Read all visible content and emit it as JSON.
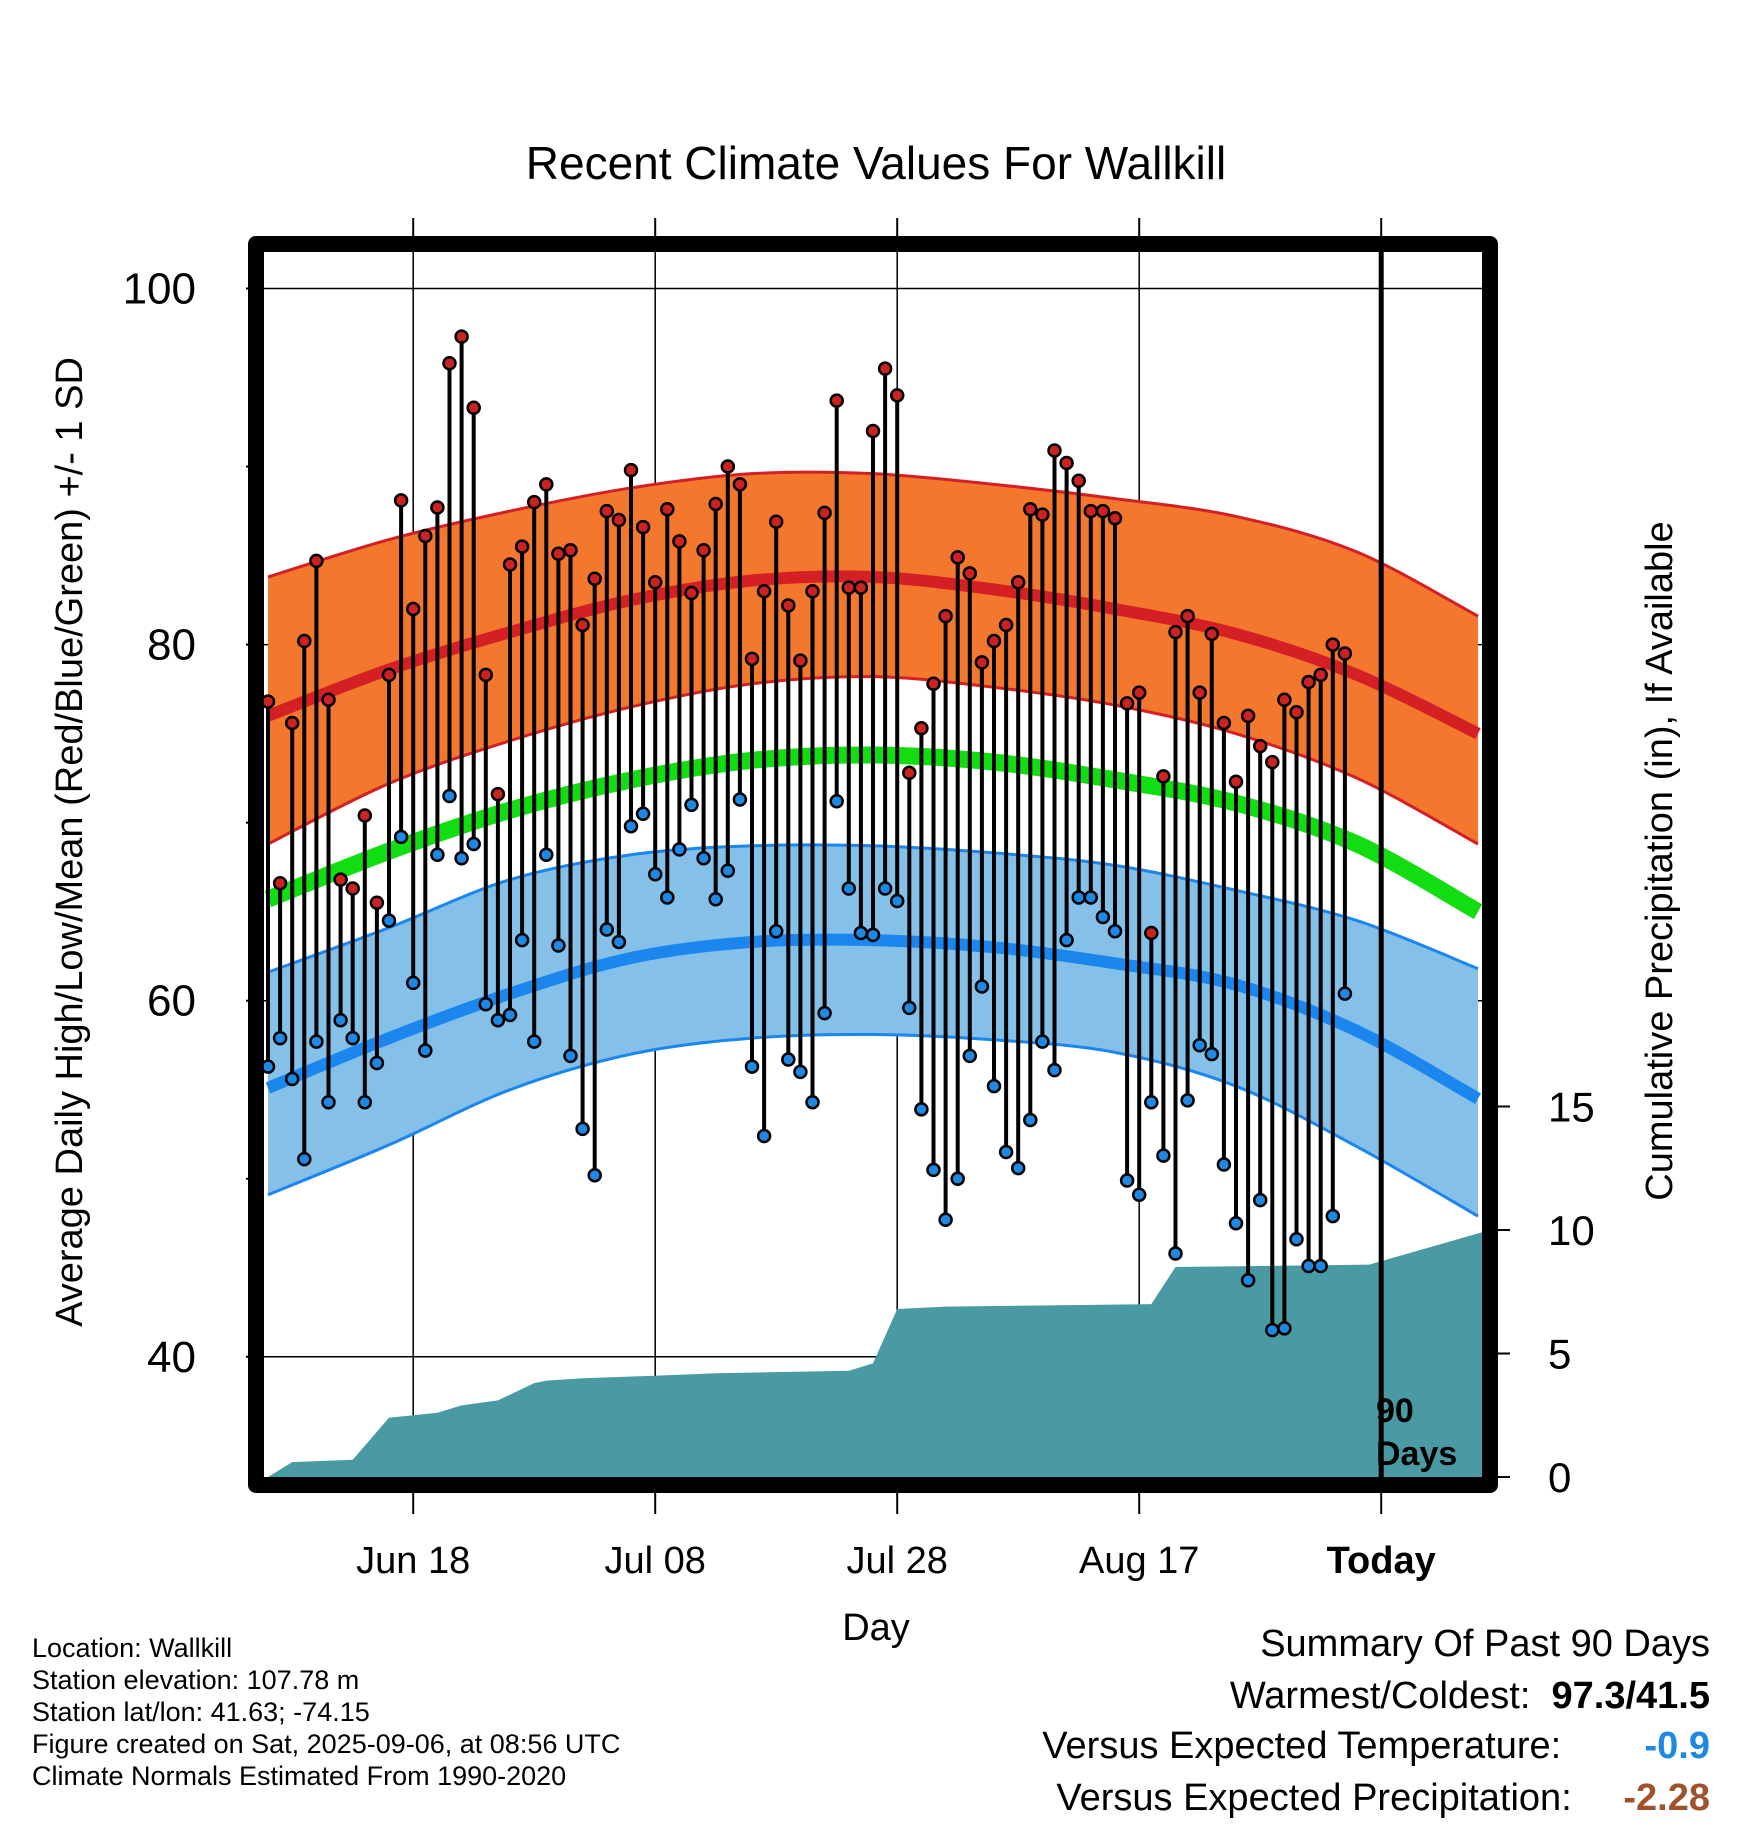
{
  "chart_data": {
    "type": "line",
    "title": "Recent Climate Values For Wallkill",
    "xlabel": "Day",
    "ylabel": "Average Daily High/Low/Mean (Red/Blue/Green) +/- 1 SD",
    "y2label": "Cumulative Precipitation (in), If Available",
    "ylim": [
      32.8,
      102.5
    ],
    "y2lim": [
      0,
      50
    ],
    "y_ticks": [
      40,
      60,
      80,
      100
    ],
    "y2_ticks": [
      0,
      5,
      10,
      15
    ],
    "x_tick_labels": [
      "Jun 18",
      "Jul 08",
      "Jul 28",
      "Aug 17",
      "Today"
    ],
    "today_marker_label": [
      "90",
      "Days"
    ],
    "grid": true,
    "colors": {
      "high_band": "#f4772e",
      "high_line": "#d42024",
      "low_band": "#85c0e8",
      "low_line": "#1a86ee",
      "mean_line": "#11dd11",
      "precip": "#4a9aa3",
      "high_point": "#cc2222",
      "low_point": "#1e88e5"
    },
    "normals": {
      "note": "normal curves sampled every 10 days from the first day (Jun 07)",
      "day": [
        1,
        11,
        21,
        31,
        41,
        51,
        61,
        71,
        81,
        91,
        101
      ],
      "high_mean": [
        76.0,
        78.6,
        80.7,
        82.5,
        83.6,
        83.8,
        83.1,
        82.0,
        80.6,
        78.3,
        75.0
      ],
      "high_upper": [
        83.8,
        85.9,
        87.5,
        88.8,
        89.6,
        89.6,
        89.0,
        88.2,
        87.2,
        85.2,
        81.6
      ],
      "high_lower": [
        68.8,
        72.2,
        74.6,
        76.5,
        77.8,
        78.2,
        77.6,
        76.6,
        75.0,
        72.5,
        68.8
      ],
      "mean_line": [
        65.7,
        68.4,
        70.7,
        72.4,
        73.5,
        73.8,
        73.4,
        72.4,
        71.1,
        68.8,
        65.0
      ],
      "low_mean": [
        55.1,
        57.9,
        60.4,
        62.4,
        63.3,
        63.4,
        63.0,
        62.1,
        60.9,
        58.3,
        54.5
      ],
      "low_upper": [
        61.6,
        64.1,
        66.8,
        68.2,
        68.7,
        68.7,
        68.3,
        67.6,
        66.2,
        64.5,
        61.8
      ],
      "low_lower": [
        49.1,
        51.9,
        55.0,
        57.0,
        57.9,
        58.1,
        57.8,
        57.1,
        55.2,
        51.8,
        47.9
      ]
    },
    "series": [
      {
        "name": "High",
        "values": [
          76.8,
          66.6,
          75.6,
          80.2,
          84.7,
          76.9,
          66.8,
          66.3,
          70.4,
          65.5,
          78.3,
          88.1,
          82.0,
          86.1,
          87.7,
          95.8,
          97.3,
          93.3,
          78.3,
          71.6,
          84.5,
          85.5,
          88.0,
          89.0,
          85.1,
          85.3,
          81.1,
          83.7,
          87.5,
          87.0,
          89.8,
          86.6,
          83.5,
          87.6,
          85.8,
          82.9,
          85.3,
          87.9,
          90.0,
          89.0,
          79.2,
          83.0,
          86.9,
          82.2,
          79.1,
          83.0,
          87.4,
          93.7,
          83.2,
          83.2,
          92.0,
          95.5,
          94.0,
          72.8,
          75.3,
          77.8,
          81.6,
          84.9,
          84.0,
          79.0,
          80.2,
          81.1,
          83.5,
          87.6,
          87.3,
          90.9,
          90.2,
          89.2,
          87.5,
          87.5,
          87.1,
          76.7,
          77.3,
          63.8,
          72.6,
          80.7,
          81.6,
          77.3,
          80.6,
          75.6,
          72.3,
          76.0,
          74.3,
          73.4,
          76.9,
          76.2,
          77.9,
          78.3,
          80.0,
          79.5
        ]
      },
      {
        "name": "Low",
        "values": [
          56.3,
          57.9,
          55.6,
          51.1,
          57.7,
          54.3,
          58.9,
          57.9,
          54.3,
          56.5,
          64.5,
          69.2,
          61.0,
          57.2,
          68.2,
          71.5,
          68.0,
          68.8,
          59.8,
          58.9,
          59.2,
          63.4,
          57.7,
          68.2,
          63.1,
          56.9,
          52.8,
          50.2,
          64.0,
          63.3,
          69.8,
          70.5,
          67.1,
          65.8,
          68.5,
          71.0,
          68.0,
          65.7,
          67.3,
          71.3,
          56.3,
          52.4,
          63.9,
          56.7,
          56.0,
          54.3,
          59.3,
          71.2,
          66.3,
          63.8,
          63.7,
          66.3,
          65.6,
          59.6,
          53.9,
          50.5,
          47.7,
          50.0,
          56.9,
          60.8,
          55.2,
          51.5,
          50.6,
          53.3,
          57.7,
          56.1,
          63.4,
          65.8,
          65.8,
          64.7,
          63.9,
          49.9,
          49.1,
          54.3,
          51.3,
          45.8,
          54.4,
          57.5,
          57.0,
          50.8,
          47.5,
          44.3,
          48.8,
          41.5,
          41.6,
          46.6,
          45.1,
          45.1,
          47.9,
          60.4
        ]
      }
    ],
    "precip_cumulative": {
      "note": "cumulative precipitation (in) by day index",
      "day": [
        1,
        3,
        8,
        11,
        15,
        17,
        20,
        23,
        24,
        27,
        33,
        38,
        49,
        51,
        53,
        57,
        74,
        76,
        92,
        102
      ],
      "value": [
        0.0,
        0.6,
        0.7,
        2.4,
        2.6,
        2.9,
        3.1,
        3.8,
        3.9,
        4.0,
        4.1,
        4.2,
        4.3,
        4.6,
        6.8,
        6.9,
        7.0,
        8.5,
        8.6,
        10.0
      ]
    }
  },
  "info": [
    "Location: Wallkill",
    "Station elevation: 107.78 m",
    "Station lat/lon: 41.63; -74.15",
    "Figure created on Sat, 2025-09-06, at 08:56 UTC",
    "Climate Normals Estimated From 1990-2020"
  ],
  "summary": {
    "heading": "Summary Of Past 90 Days",
    "warm_cold_label": "Warmest/Coldest:",
    "warm_cold_value": "97.3/41.5",
    "temp_label": "Versus Expected Temperature:",
    "temp_value": "-0.9",
    "temp_color": "#1e88e5",
    "precip_label": "Versus Expected Precipitation:",
    "precip_value": "-2.28",
    "precip_color": "#a0522d"
  }
}
